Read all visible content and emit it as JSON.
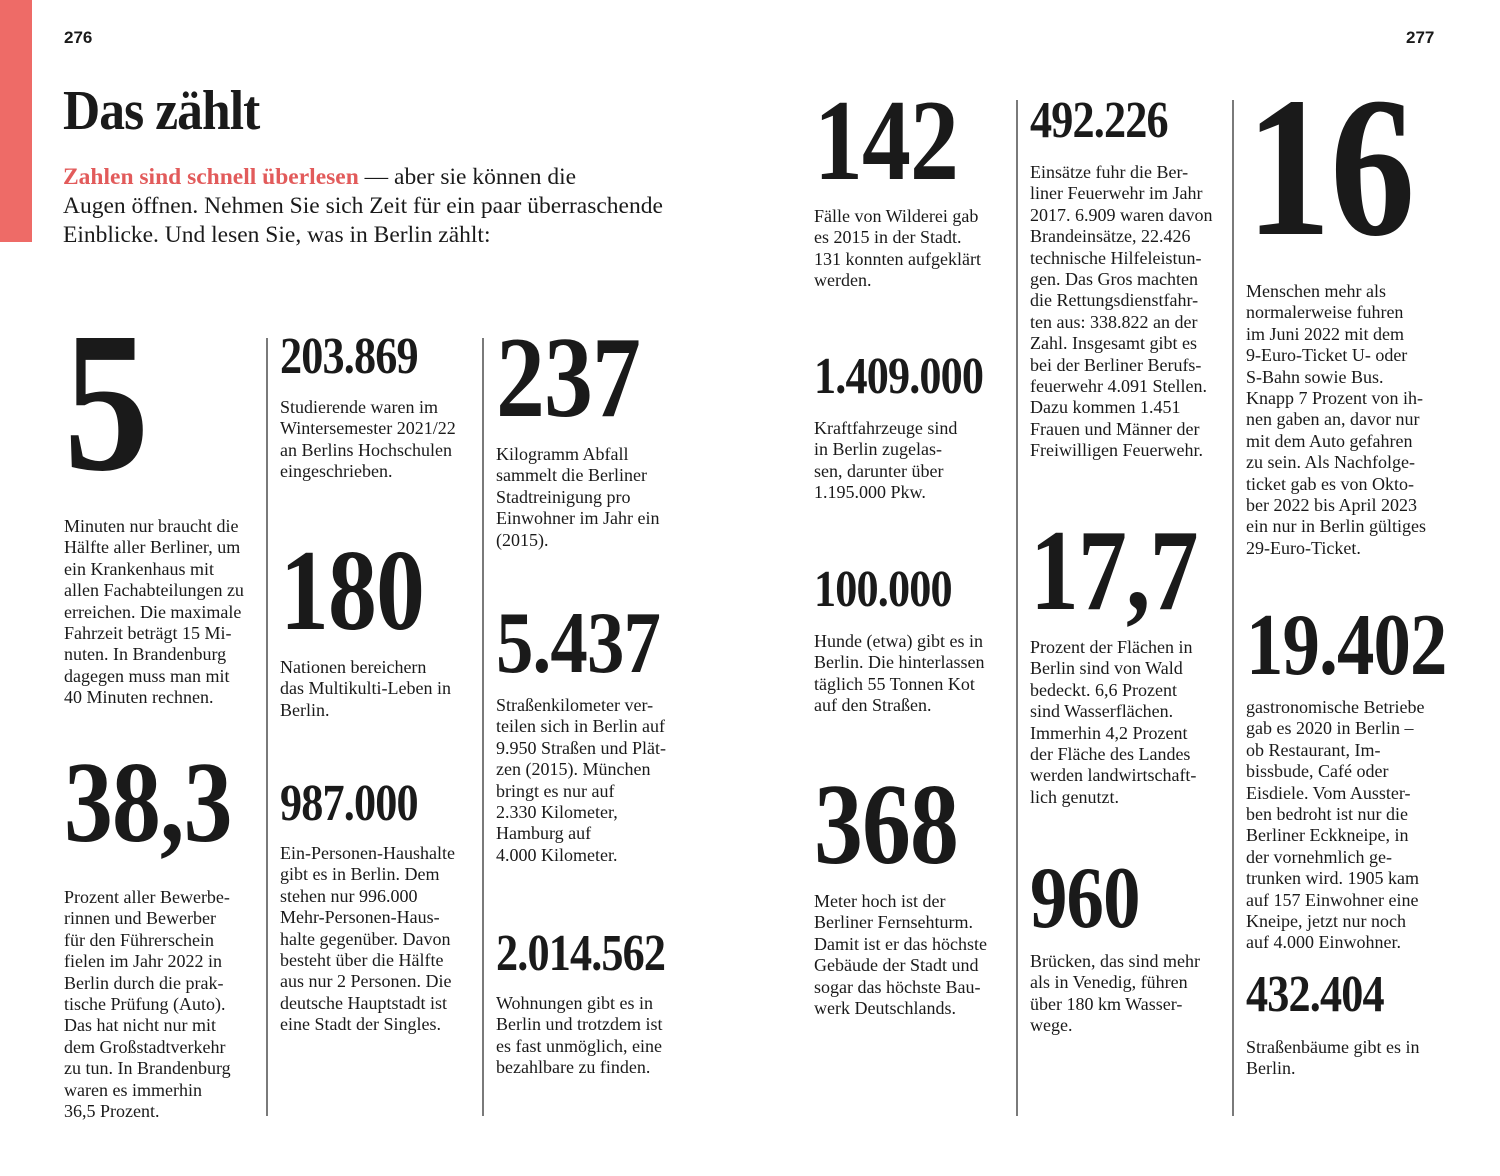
{
  "colors": {
    "accent": "#ee6b67",
    "text": "#1a1a1a",
    "rule": "#7a7a7a"
  },
  "page_left": "276",
  "page_right": "277",
  "title": "Das zählt",
  "intro": {
    "highlight": "Zahlen sind schnell überlesen",
    "rest": " — aber sie können die\nAugen öffnen. Nehmen Sie sich Zeit für ein paar überraschende\nEinblicke. Und lesen Sie, was in Berlin zählt:"
  },
  "facts": [
    {
      "number": "5",
      "text": "Minuten nur braucht die\nHälfte aller Berliner, um\nein Krankenhaus mit\nallen Fachabteilungen zu\nerreichen. Die maximale\nFahrzeit beträgt 15 Mi-\nnuten. In Brandenburg\ndagegen muss man mit\n40 Minuten rechnen."
    },
    {
      "number": "38,3",
      "text": "Prozent aller Bewerbe-\nrinnen und Bewerber\nfür den Führerschein\nfielen im Jahr 2022 in\nBerlin durch die prak-\ntische Prüfung (Auto).\nDas hat nicht nur mit\ndem Großstadtverkehr\nzu tun. In Brandenburg\nwaren es immerhin\n36,5 Prozent."
    },
    {
      "number": "203.869",
      "text": "Studierende waren im\nWintersemester 2021/22\nan Berlins Hochschulen\neingeschrieben."
    },
    {
      "number": "180",
      "text": "Nationen bereichern\ndas Multikulti-Leben in\nBerlin."
    },
    {
      "number": "987.000",
      "text": "Ein-Personen-Haushalte\ngibt es in Berlin. Dem\nstehen nur 996.000\nMehr-Personen-Haus-\nhalte gegenüber. Davon\nbesteht über die Hälfte\naus nur 2 Personen. Die\ndeutsche Hauptstadt ist\neine Stadt der Singles."
    },
    {
      "number": "237",
      "text": "Kilogramm Abfall\nsammelt die Berliner\nStadtreinigung pro\nEinwohner im Jahr ein\n(2015)."
    },
    {
      "number": "5.437",
      "text": "Straßenkilometer ver-\nteilen sich in Berlin auf\n9.950 Straßen und Plät-\nzen (2015). München\nbringt es nur auf\n2.330 Kilometer,\nHamburg auf\n4.000 Kilometer."
    },
    {
      "number": "2.014.562",
      "text": "Wohnungen gibt es in\nBerlin und trotzdem ist\nes fast unmöglich, eine\nbezahlbare zu finden."
    },
    {
      "number": "142",
      "text": "Fälle von Wilderei gab\nes 2015 in der Stadt.\n131 konnten aufgeklärt\nwerden."
    },
    {
      "number": "1.409.000",
      "text": "Kraftfahrzeuge sind\nin Berlin zugelas-\nsen, darunter über\n1.195.000 Pkw."
    },
    {
      "number": "100.000",
      "text": "Hunde (etwa) gibt es in\nBerlin. Die hinterlassen\ntäglich 55 Tonnen Kot\nauf den Straßen."
    },
    {
      "number": "368",
      "text": "Meter hoch ist der\nBerliner Fernsehturm.\nDamit ist er das höchste\nGebäude der Stadt und\nsogar das höchste Bau-\nwerk Deutschlands."
    },
    {
      "number": "492.226",
      "text": "Einsätze fuhr die Ber-\nliner Feuerwehr im Jahr\n2017. 6.909 waren davon\nBrandeinsätze, 22.426\ntechnische Hilfeleistun-\ngen. Das Gros machten\ndie Rettungsdienstfahr-\nten aus: 338.822 an der\nZahl. Insgesamt gibt es\nbei der Berliner Berufs-\nfeuerwehr 4.091 Stellen.\nDazu kommen 1.451\nFrauen und Männer der\nFreiwilligen Feuerwehr."
    },
    {
      "number": "17,7",
      "text": "Prozent der Flächen in\nBerlin sind von Wald\nbedeckt. 6,6 Prozent\nsind Wasserflächen.\nImmerhin 4,2 Prozent\nder Fläche des Landes\nwerden landwirtschaft-\nlich genutzt."
    },
    {
      "number": "960",
      "text": "Brücken, das sind mehr\nals in Venedig, führen\nüber 180 km Wasser-\nwege."
    },
    {
      "number": "16",
      "text": "Menschen mehr als\nnormalerweise fuhren\nim Juni 2022 mit dem\n9-Euro-Ticket U- oder\nS-Bahn sowie Bus.\nKnapp 7 Prozent von ih-\nnen gaben an, davor nur\nmit dem Auto gefahren\nzu sein. Als Nachfolge-\nticket gab es von Okto-\nber 2022 bis April 2023\nein nur in Berlin gültiges\n29-Euro-Ticket."
    },
    {
      "number": "19.402",
      "text": "gastronomische Betriebe\ngab es 2020 in Berlin –\nob Restaurant, Im-\nbissbude, Café oder\nEisdiele. Vom Ausster-\nben bedroht ist nur die\nBerliner Eckkneipe, in\nder vornehmlich ge-\ntrunken wird. 1905 kam\nauf 157 Einwohner eine\nKneipe, jetzt nur noch\nauf 4.000 Einwohner."
    },
    {
      "number": "432.404",
      "text": "Straßenbäume gibt es in\nBerlin."
    }
  ]
}
